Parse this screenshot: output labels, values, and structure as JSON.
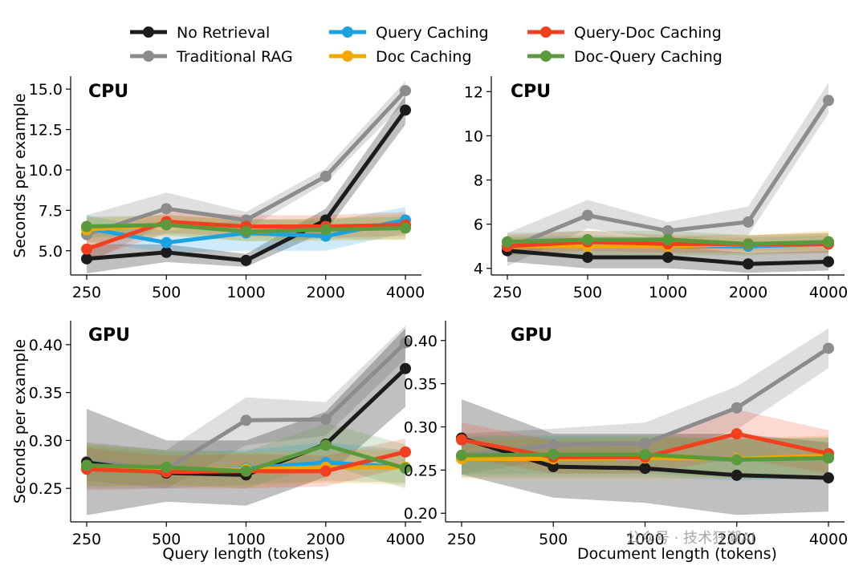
{
  "legend": [
    {
      "key": "no_retrieval",
      "label": "No Retrieval"
    },
    {
      "key": "traditional_rag",
      "label": "Traditional RAG"
    },
    {
      "key": "query_caching",
      "label": "Query Caching"
    },
    {
      "key": "doc_caching",
      "label": "Doc Caching"
    },
    {
      "key": "query_doc_caching",
      "label": "Query-Doc Caching"
    },
    {
      "key": "doc_query_caching",
      "label": "Doc-Query Caching"
    }
  ],
  "colors": {
    "no_retrieval": "#1c1c1c",
    "traditional_rag": "#8c8c8c",
    "query_caching": "#1aa3e0",
    "doc_caching": "#f0a800",
    "query_doc_caching": "#f0401e",
    "doc_query_caching": "#5b9a3c"
  },
  "watermark": "公众号 · 技术狂潮AI",
  "chart_data": [
    {
      "id": "cpu-query",
      "type": "line",
      "title": "CPU",
      "xlabel": "",
      "ylabel": "Seconds per example",
      "categories": [
        "250",
        "500",
        "1000",
        "2000",
        "4000"
      ],
      "ylim": [
        3.5,
        15.8
      ],
      "yticks": [
        5.0,
        7.5,
        10.0,
        12.5,
        15.0
      ],
      "ytick_labels": [
        "5.0",
        "7.5",
        "10.0",
        "12.5",
        "15.0"
      ],
      "series": [
        {
          "key": "traditional_rag",
          "name": "Traditional RAG",
          "values": [
            6.0,
            7.6,
            6.9,
            9.6,
            14.9
          ],
          "band": [
            [
              4.2,
              7.2
            ],
            [
              6.7,
              8.6
            ],
            [
              6.3,
              7.4
            ],
            [
              9.2,
              10.1
            ],
            [
              14.2,
              15.5
            ]
          ]
        },
        {
          "key": "no_retrieval",
          "name": "No Retrieval",
          "values": [
            4.5,
            4.9,
            4.4,
            6.9,
            13.7
          ],
          "band": [
            [
              3.6,
              5.4
            ],
            [
              4.3,
              5.4
            ],
            [
              4.0,
              4.8
            ],
            [
              6.2,
              7.6
            ],
            [
              12.8,
              14.6
            ]
          ]
        },
        {
          "key": "query_caching",
          "name": "Query Caching",
          "values": [
            6.4,
            5.5,
            6.1,
            5.9,
            6.9
          ],
          "band": [
            [
              5.6,
              7.2
            ],
            [
              4.9,
              6.2
            ],
            [
              5.0,
              7.0
            ],
            [
              5.0,
              6.8
            ],
            [
              6.1,
              7.7
            ]
          ]
        },
        {
          "key": "doc_caching",
          "name": "Doc Caching",
          "values": [
            6.3,
            6.6,
            6.2,
            6.3,
            6.5
          ],
          "band": [
            [
              5.5,
              7.0
            ],
            [
              5.9,
              7.2
            ],
            [
              5.6,
              6.9
            ],
            [
              5.6,
              7.0
            ],
            [
              5.7,
              7.3
            ]
          ]
        },
        {
          "key": "query_doc_caching",
          "name": "Query-Doc Caching",
          "values": [
            5.1,
            6.8,
            6.5,
            6.5,
            6.6
          ],
          "band": [
            [
              4.4,
              5.9
            ],
            [
              6.1,
              7.4
            ],
            [
              5.9,
              7.2
            ],
            [
              5.8,
              7.2
            ],
            [
              5.9,
              7.4
            ]
          ]
        },
        {
          "key": "doc_query_caching",
          "name": "Doc-Query Caching",
          "values": [
            6.5,
            6.6,
            6.2,
            6.3,
            6.4
          ],
          "band": [
            [
              5.8,
              7.1
            ],
            [
              6.0,
              7.2
            ],
            [
              5.6,
              6.9
            ],
            [
              5.7,
              7.0
            ],
            [
              5.7,
              7.1
            ]
          ]
        }
      ]
    },
    {
      "id": "cpu-doc",
      "type": "line",
      "title": "CPU",
      "xlabel": "",
      "ylabel": "",
      "categories": [
        "250",
        "500",
        "1000",
        "2000",
        "4000"
      ],
      "ylim": [
        3.7,
        12.7
      ],
      "yticks": [
        4,
        6,
        8,
        10,
        12
      ],
      "ytick_labels": [
        "4",
        "6",
        "8",
        "10",
        "12"
      ],
      "series": [
        {
          "key": "traditional_rag",
          "name": "Traditional RAG",
          "values": [
            4.9,
            6.4,
            5.7,
            6.1,
            11.6
          ],
          "band": [
            [
              4.1,
              5.6
            ],
            [
              5.8,
              7.1
            ],
            [
              5.3,
              6.1
            ],
            [
              5.5,
              6.8
            ],
            [
              11.0,
              12.4
            ]
          ]
        },
        {
          "key": "no_retrieval",
          "name": "No Retrieval",
          "values": [
            4.8,
            4.5,
            4.5,
            4.2,
            4.3
          ],
          "band": [
            [
              4.3,
              5.3
            ],
            [
              4.0,
              5.0
            ],
            [
              4.0,
              5.0
            ],
            [
              3.8,
              4.7
            ],
            [
              3.9,
              4.8
            ]
          ]
        },
        {
          "key": "query_caching",
          "name": "Query Caching",
          "values": [
            5.0,
            5.1,
            5.0,
            5.0,
            5.1
          ],
          "band": [
            [
              4.6,
              5.4
            ],
            [
              4.6,
              5.5
            ],
            [
              4.6,
              5.4
            ],
            [
              4.6,
              5.4
            ],
            [
              4.7,
              5.5
            ]
          ]
        },
        {
          "key": "doc_caching",
          "name": "Doc Caching",
          "values": [
            5.0,
            5.0,
            5.0,
            5.1,
            5.2
          ],
          "band": [
            [
              4.6,
              5.4
            ],
            [
              4.6,
              5.4
            ],
            [
              4.6,
              5.4
            ],
            [
              4.6,
              5.5
            ],
            [
              4.7,
              5.7
            ]
          ]
        },
        {
          "key": "query_doc_caching",
          "name": "Query-Doc Caching",
          "values": [
            5.0,
            5.2,
            5.1,
            5.1,
            5.1
          ],
          "band": [
            [
              4.6,
              5.5
            ],
            [
              4.8,
              5.7
            ],
            [
              4.7,
              5.5
            ],
            [
              4.7,
              5.5
            ],
            [
              4.7,
              5.6
            ]
          ]
        },
        {
          "key": "doc_query_caching",
          "name": "Doc-Query Caching",
          "values": [
            5.2,
            5.3,
            5.3,
            5.1,
            5.2
          ],
          "band": [
            [
              4.8,
              5.6
            ],
            [
              4.9,
              5.7
            ],
            [
              4.9,
              5.7
            ],
            [
              4.8,
              5.5
            ],
            [
              4.8,
              5.6
            ]
          ]
        }
      ]
    },
    {
      "id": "gpu-query",
      "type": "line",
      "title": "GPU",
      "xlabel": "Query length (tokens)",
      "ylabel": "Seconds per example",
      "categories": [
        "250",
        "500",
        "1000",
        "2000",
        "4000"
      ],
      "ylim": [
        0.215,
        0.425
      ],
      "yticks": [
        0.25,
        0.3,
        0.35,
        0.4
      ],
      "ytick_labels": [
        "0.25",
        "0.30",
        "0.35",
        "0.40"
      ],
      "series": [
        {
          "key": "traditional_rag",
          "name": "Traditional RAG",
          "values": [
            0.278,
            0.27,
            0.321,
            0.322,
            0.402
          ],
          "band": [
            [
              0.258,
              0.298
            ],
            [
              0.25,
              0.29
            ],
            [
              0.295,
              0.345
            ],
            [
              0.305,
              0.34
            ],
            [
              0.385,
              0.42
            ]
          ]
        },
        {
          "key": "no_retrieval",
          "name": "No Retrieval",
          "values": [
            0.277,
            0.266,
            0.264,
            0.296,
            0.375
          ],
          "band": [
            [
              0.222,
              0.333
            ],
            [
              0.236,
              0.3
            ],
            [
              0.232,
              0.3
            ],
            [
              0.262,
              0.33
            ],
            [
              0.335,
              0.417
            ]
          ]
        },
        {
          "key": "query_caching",
          "name": "Query Caching",
          "values": [
            0.272,
            0.268,
            0.271,
            0.277,
            0.272
          ],
          "band": [
            [
              0.25,
              0.294
            ],
            [
              0.25,
              0.288
            ],
            [
              0.254,
              0.29
            ],
            [
              0.258,
              0.298
            ],
            [
              0.256,
              0.29
            ]
          ]
        },
        {
          "key": "doc_caching",
          "name": "Doc Caching",
          "values": [
            0.274,
            0.27,
            0.27,
            0.272,
            0.272
          ],
          "band": [
            [
              0.252,
              0.296
            ],
            [
              0.252,
              0.288
            ],
            [
              0.252,
              0.288
            ],
            [
              0.256,
              0.29
            ],
            [
              0.254,
              0.29
            ]
          ]
        },
        {
          "key": "query_doc_caching",
          "name": "Query-Doc Caching",
          "values": [
            0.27,
            0.267,
            0.268,
            0.268,
            0.288
          ],
          "band": [
            [
              0.248,
              0.292
            ],
            [
              0.25,
              0.284
            ],
            [
              0.25,
              0.286
            ],
            [
              0.252,
              0.284
            ],
            [
              0.272,
              0.302
            ]
          ]
        },
        {
          "key": "doc_query_caching",
          "name": "Doc-Query Caching",
          "values": [
            0.274,
            0.272,
            0.268,
            0.295,
            0.271
          ],
          "band": [
            [
              0.252,
              0.296
            ],
            [
              0.254,
              0.29
            ],
            [
              0.25,
              0.288
            ],
            [
              0.275,
              0.318
            ],
            [
              0.25,
              0.296
            ]
          ]
        }
      ]
    },
    {
      "id": "gpu-doc",
      "type": "line",
      "title": "GPU",
      "xlabel": "Document length (tokens)",
      "ylabel": "",
      "categories": [
        "250",
        "500",
        "1000",
        "2000",
        "4000"
      ],
      "ylim": [
        0.19,
        0.423
      ],
      "yticks": [
        0.2,
        0.25,
        0.3,
        0.35,
        0.4
      ],
      "ytick_labels": [
        "0.20",
        "0.25",
        "0.30",
        "0.35",
        "0.40"
      ],
      "series": [
        {
          "key": "traditional_rag",
          "name": "Traditional RAG",
          "values": [
            0.267,
            0.279,
            0.281,
            0.322,
            0.391
          ],
          "band": [
            [
              0.245,
              0.292
            ],
            [
              0.262,
              0.298
            ],
            [
              0.262,
              0.305
            ],
            [
              0.297,
              0.347
            ],
            [
              0.368,
              0.414
            ]
          ]
        },
        {
          "key": "no_retrieval",
          "name": "No Retrieval",
          "values": [
            0.287,
            0.254,
            0.252,
            0.244,
            0.241
          ],
          "band": [
            [
              0.245,
              0.332
            ],
            [
              0.218,
              0.292
            ],
            [
              0.212,
              0.292
            ],
            [
              0.198,
              0.292
            ],
            [
              0.202,
              0.282
            ]
          ]
        },
        {
          "key": "query_caching",
          "name": "Query Caching",
          "values": [
            0.265,
            0.265,
            0.265,
            0.262,
            0.264
          ],
          "band": [
            [
              0.242,
              0.288
            ],
            [
              0.242,
              0.288
            ],
            [
              0.242,
              0.288
            ],
            [
              0.238,
              0.286
            ],
            [
              0.24,
              0.288
            ]
          ]
        },
        {
          "key": "doc_caching",
          "name": "Doc Caching",
          "values": [
            0.263,
            0.263,
            0.264,
            0.263,
            0.267
          ],
          "band": [
            [
              0.24,
              0.286
            ],
            [
              0.24,
              0.286
            ],
            [
              0.24,
              0.288
            ],
            [
              0.24,
              0.286
            ],
            [
              0.243,
              0.29
            ]
          ]
        },
        {
          "key": "query_doc_caching",
          "name": "Query-Doc Caching",
          "values": [
            0.285,
            0.265,
            0.265,
            0.292,
            0.269
          ],
          "band": [
            [
              0.265,
              0.305
            ],
            [
              0.246,
              0.284
            ],
            [
              0.246,
              0.284
            ],
            [
              0.264,
              0.32
            ],
            [
              0.246,
              0.296
            ]
          ]
        },
        {
          "key": "doc_query_caching",
          "name": "Doc-Query Caching",
          "values": [
            0.267,
            0.268,
            0.268,
            0.262,
            0.264
          ],
          "band": [
            [
              0.245,
              0.29
            ],
            [
              0.246,
              0.29
            ],
            [
              0.246,
              0.29
            ],
            [
              0.24,
              0.286
            ],
            [
              0.242,
              0.287
            ]
          ]
        }
      ]
    }
  ]
}
